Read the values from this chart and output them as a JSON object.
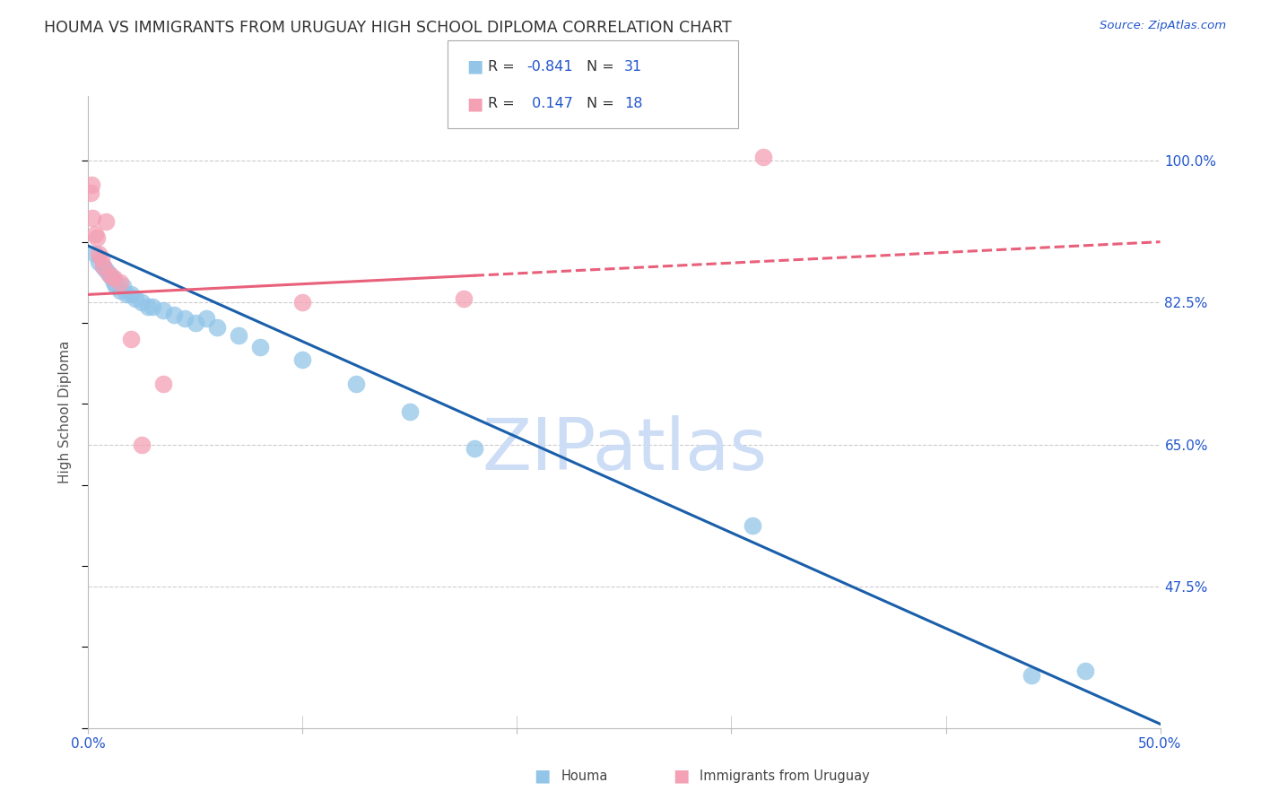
{
  "title": "HOUMA VS IMMIGRANTS FROM URUGUAY HIGH SCHOOL DIPLOMA CORRELATION CHART",
  "source": "Source: ZipAtlas.com",
  "ylabel": "High School Diploma",
  "xlim": [
    0.0,
    50.0
  ],
  "ylim": [
    30.0,
    108.0
  ],
  "yticks": [
    47.5,
    65.0,
    82.5,
    100.0
  ],
  "xticks": [
    0.0,
    10.0,
    20.0,
    30.0,
    40.0,
    50.0
  ],
  "color_houma": "#92c5e8",
  "color_uruguay": "#f4a0b5",
  "color_blue_line": "#1a5faa",
  "color_pink_line": "#e8607a",
  "color_title": "#333333",
  "color_axis_labels": "#2255cc",
  "color_source": "#2255cc",
  "color_watermark": "#ccddf5",
  "houma_x": [
    0.3,
    0.5,
    0.7,
    0.8,
    1.0,
    1.1,
    1.2,
    1.3,
    1.5,
    1.6,
    1.8,
    2.0,
    2.2,
    2.5,
    2.8,
    3.0,
    3.5,
    4.0,
    4.5,
    5.0,
    5.5,
    6.0,
    7.0,
    8.0,
    10.0,
    12.5,
    15.0,
    18.0,
    31.0,
    44.0,
    46.5
  ],
  "houma_y": [
    88.5,
    87.5,
    87.0,
    86.5,
    86.0,
    85.5,
    85.0,
    84.5,
    84.0,
    84.5,
    83.5,
    83.5,
    83.0,
    82.5,
    82.0,
    82.0,
    81.5,
    81.0,
    80.5,
    80.0,
    80.5,
    79.5,
    78.5,
    77.0,
    75.5,
    72.5,
    69.0,
    64.5,
    55.0,
    36.5,
    37.0
  ],
  "uruguay_x": [
    0.1,
    0.15,
    0.2,
    0.3,
    0.4,
    0.5,
    0.6,
    0.7,
    0.8,
    1.0,
    1.2,
    1.5,
    2.0,
    2.5,
    3.5,
    10.0,
    17.5,
    31.5
  ],
  "uruguay_y": [
    96.0,
    97.0,
    93.0,
    91.0,
    90.5,
    88.5,
    88.0,
    87.0,
    92.5,
    86.0,
    85.5,
    85.0,
    78.0,
    65.0,
    72.5,
    82.5,
    83.0,
    100.5
  ],
  "houma_trend_x0": 0.0,
  "houma_trend_y0": 89.5,
  "houma_trend_x1": 50.0,
  "houma_trend_y1": 30.5,
  "uruguay_trend_x0": 0.0,
  "uruguay_trend_y0": 83.5,
  "uruguay_trend_x1": 50.0,
  "uruguay_trend_y1": 90.0,
  "legend_label_houma": "Houma",
  "legend_label_uruguay": "Immigrants from Uruguay",
  "background_color": "#ffffff",
  "grid_color": "#cccccc"
}
